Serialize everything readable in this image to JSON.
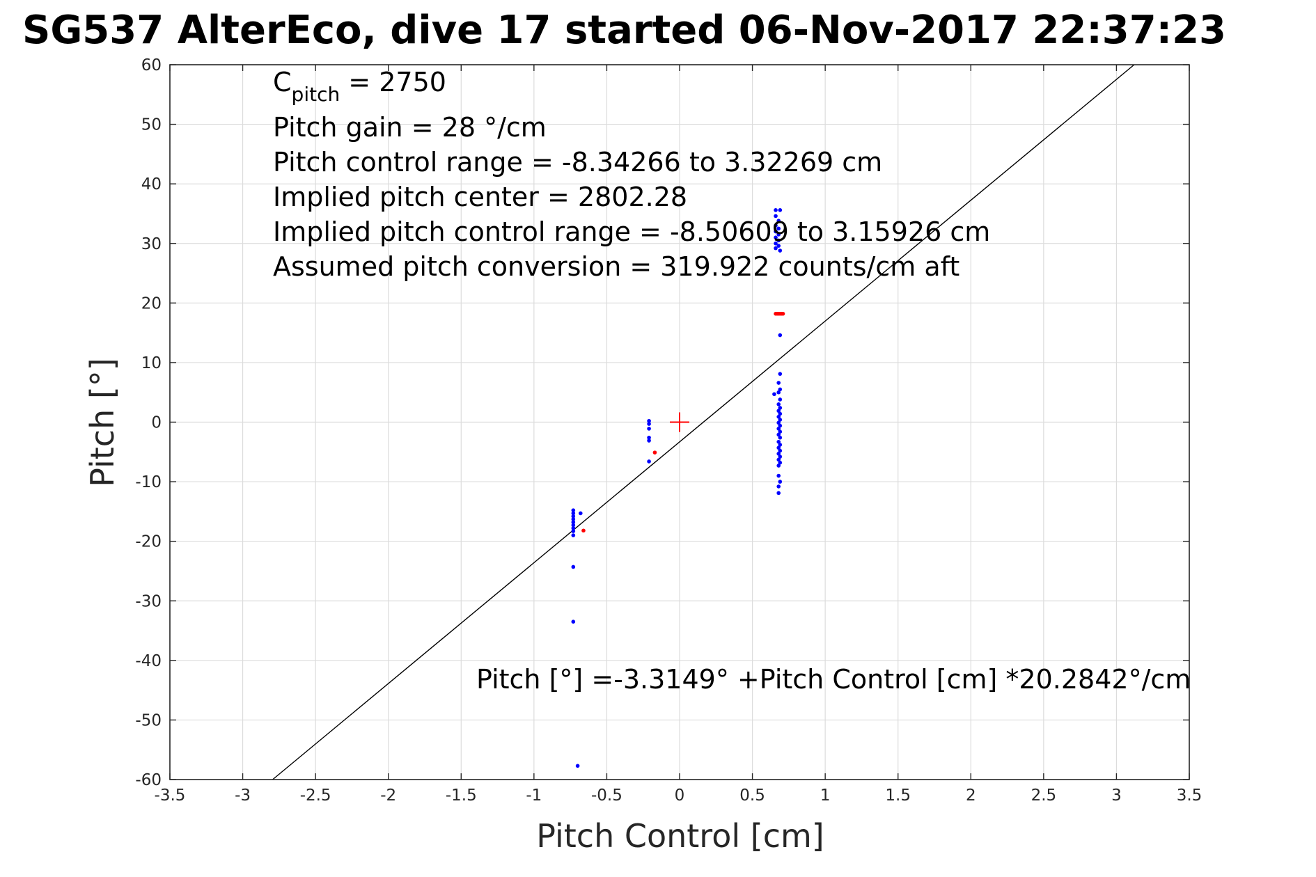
{
  "chart_data": {
    "type": "scatter",
    "title": "SG537 AlterEco, dive 17 started 06-Nov-2017 22:37:23",
    "xlabel": "Pitch Control [cm]",
    "ylabel": "Pitch [°]",
    "xlim": [
      -3.5,
      3.5
    ],
    "ylim": [
      -60,
      60
    ],
    "xticks": [
      -3.5,
      -3,
      -2.5,
      -2,
      -1.5,
      -1,
      -0.5,
      0,
      0.5,
      1,
      1.5,
      2,
      2.5,
      3,
      3.5
    ],
    "yticks": [
      -60,
      -50,
      -40,
      -30,
      -20,
      -10,
      0,
      10,
      20,
      30,
      40,
      50,
      60
    ],
    "grid": true,
    "annotations": {
      "c_pitch_main": "C",
      "c_pitch_sub": "pitch",
      "c_pitch_value": " = 2750",
      "lines": [
        "Pitch gain = 28 °/cm",
        "Pitch control range = -8.34266 to 3.32269 cm",
        "Implied pitch center = 2802.28",
        "Implied pitch control range = -8.50609 to 3.15926 cm",
        "Assumed pitch conversion = 319.922 counts/cm aft"
      ],
      "fit_equation": "Pitch [°] =-3.3149° +Pitch Control [cm] *20.2842°/cm"
    },
    "fit_line": {
      "intercept": -3.3149,
      "slope": 20.2842,
      "color": "#000000"
    },
    "center_marker": {
      "x": 0,
      "y": 0,
      "color": "#ff0000"
    },
    "series": [
      {
        "color": "#0000ff",
        "points": [
          [
            -0.73,
            -14.8
          ],
          [
            -0.73,
            -15.3
          ],
          [
            -0.73,
            -15.8
          ],
          [
            -0.73,
            -16.3
          ],
          [
            -0.73,
            -16.8
          ],
          [
            -0.73,
            -17.3
          ],
          [
            -0.73,
            -17.8
          ],
          [
            -0.73,
            -18.3
          ],
          [
            -0.73,
            -19.0
          ],
          [
            -0.68,
            -15.3
          ],
          [
            -0.73,
            -24.3
          ],
          [
            -0.73,
            -33.5
          ],
          [
            -0.7,
            -57.7
          ],
          [
            -0.21,
            0.2
          ],
          [
            -0.21,
            -0.3
          ],
          [
            -0.21,
            -1.1
          ],
          [
            -0.21,
            -2.6
          ],
          [
            -0.21,
            -3.1
          ],
          [
            -0.21,
            -6.6
          ],
          [
            0.66,
            35.6
          ],
          [
            0.69,
            35.6
          ],
          [
            0.66,
            34.6
          ],
          [
            0.68,
            33.8
          ],
          [
            0.66,
            33.0
          ],
          [
            0.68,
            32.5
          ],
          [
            0.66,
            32.0
          ],
          [
            0.68,
            31.5
          ],
          [
            0.66,
            31.0
          ],
          [
            0.68,
            30.5
          ],
          [
            0.66,
            30.0
          ],
          [
            0.68,
            29.6
          ],
          [
            0.66,
            29.2
          ],
          [
            0.69,
            28.8
          ],
          [
            0.69,
            14.6
          ],
          [
            0.69,
            8.1
          ],
          [
            0.68,
            6.6
          ],
          [
            0.69,
            5.5
          ],
          [
            0.68,
            5.0
          ],
          [
            0.65,
            4.7
          ],
          [
            0.69,
            3.8
          ],
          [
            0.68,
            3.0
          ],
          [
            0.69,
            2.4
          ],
          [
            0.68,
            1.9
          ],
          [
            0.69,
            1.4
          ],
          [
            0.68,
            0.9
          ],
          [
            0.69,
            0.4
          ],
          [
            0.68,
            -0.1
          ],
          [
            0.69,
            -0.6
          ],
          [
            0.68,
            -1.1
          ],
          [
            0.69,
            -1.6
          ],
          [
            0.68,
            -2.1
          ],
          [
            0.69,
            -2.6
          ],
          [
            0.68,
            -3.3
          ],
          [
            0.69,
            -3.8
          ],
          [
            0.68,
            -4.3
          ],
          [
            0.69,
            -4.8
          ],
          [
            0.68,
            -5.3
          ],
          [
            0.69,
            -5.8
          ],
          [
            0.68,
            -6.3
          ],
          [
            0.69,
            -6.8
          ],
          [
            0.68,
            -7.3
          ],
          [
            0.68,
            -9.0
          ],
          [
            0.69,
            -10.0
          ],
          [
            0.68,
            -10.8
          ],
          [
            0.68,
            -11.9
          ]
        ]
      },
      {
        "color": "#ff0000",
        "points": [
          [
            -0.66,
            -18.2
          ],
          [
            -0.17,
            -5.1
          ],
          [
            0.66,
            18.2
          ],
          [
            0.67,
            18.2
          ],
          [
            0.68,
            18.2
          ],
          [
            0.69,
            18.2
          ],
          [
            0.7,
            18.2
          ],
          [
            0.71,
            18.2
          ]
        ]
      }
    ]
  }
}
